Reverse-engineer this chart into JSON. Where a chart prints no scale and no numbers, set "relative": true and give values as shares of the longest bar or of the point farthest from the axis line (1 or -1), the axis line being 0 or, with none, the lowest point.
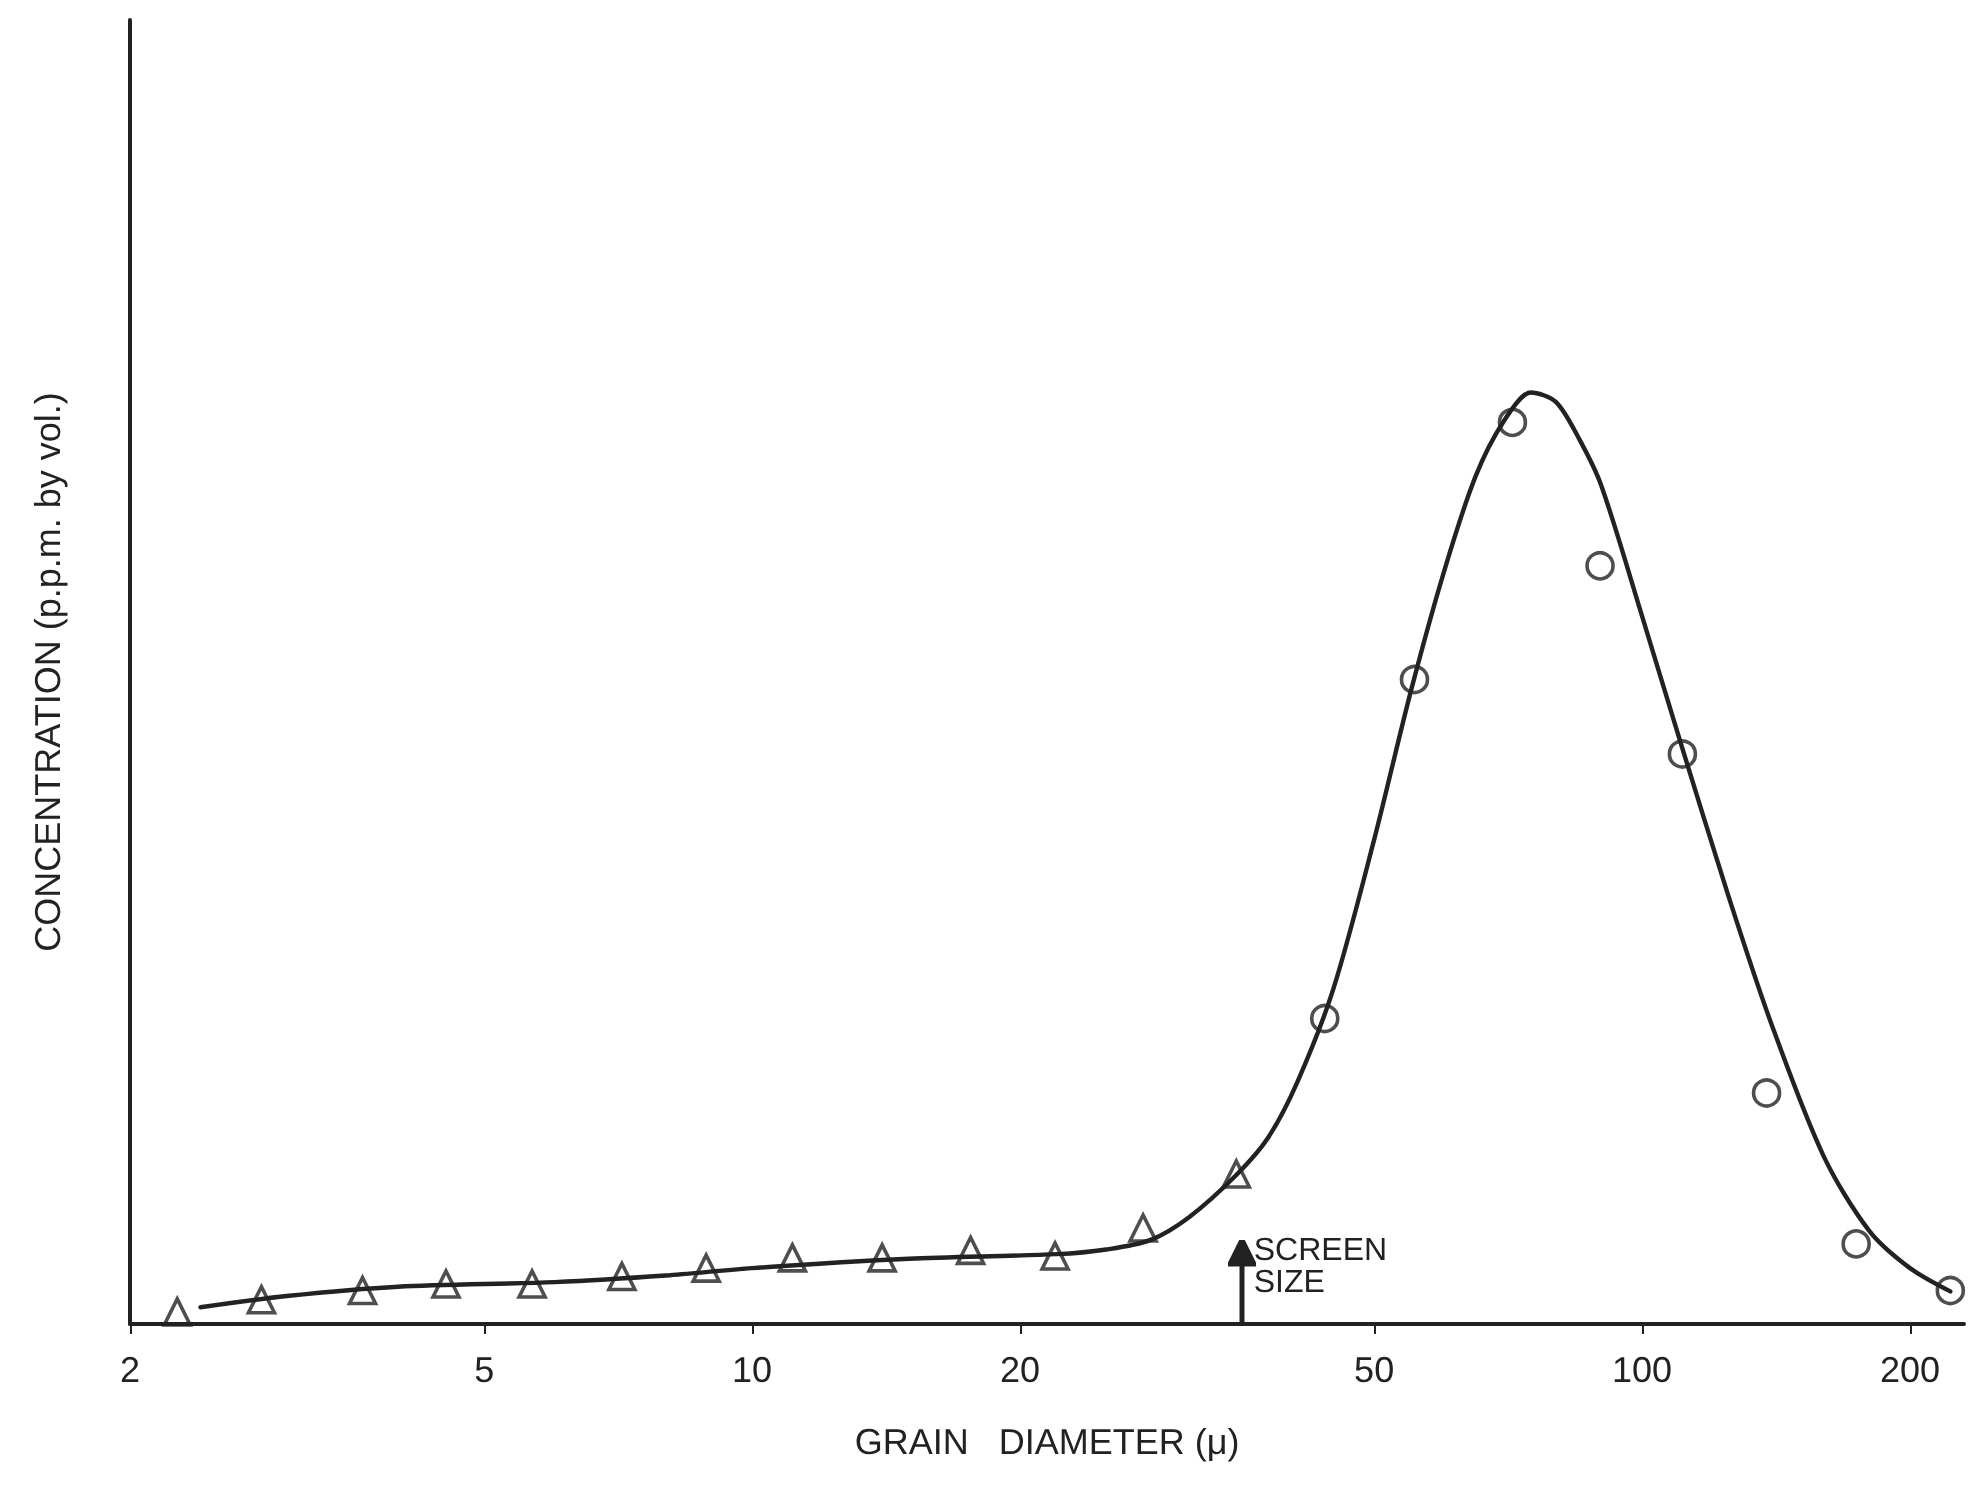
{
  "chart_data": {
    "type": "line",
    "relative": true,
    "xlabel": "GRAIN   DIAMETER (μ)",
    "ylabel": "CONCENTRATION (p.p.m. by vol.)",
    "log": "x",
    "xlim": [
      2,
      230
    ],
    "xticks": [
      2,
      5,
      10,
      20,
      50,
      100,
      200
    ],
    "grid": false,
    "series": [
      {
        "marker": "none",
        "line_style": "solid",
        "color": "#222222",
        "x": [
          2.4,
          3,
          4,
          6,
          8,
          10,
          15,
          22,
          25,
          28,
          31,
          35,
          38,
          41,
          45,
          50,
          55,
          60,
          65,
          70,
          75,
          80,
          85,
          90,
          100,
          110,
          125,
          140,
          160,
          180,
          200,
          222
        ],
        "values": [
          0.018,
          0.03,
          0.04,
          0.045,
          0.052,
          0.06,
          0.07,
          0.075,
          0.08,
          0.09,
          0.115,
          0.16,
          0.2,
          0.26,
          0.36,
          0.52,
          0.68,
          0.81,
          0.91,
          0.97,
          1.0,
          0.99,
          0.95,
          0.9,
          0.76,
          0.63,
          0.46,
          0.32,
          0.18,
          0.1,
          0.06,
          0.035
        ]
      },
      {
        "type": "scatter",
        "marker": "triangle",
        "color": "#222222",
        "x": [
          2.26,
          2.81,
          3.65,
          4.53,
          5.66,
          7.14,
          8.88,
          11.1,
          14.0,
          17.6,
          21.9,
          27.5,
          35.0
        ],
        "values": [
          0.013,
          0.026,
          0.036,
          0.043,
          0.043,
          0.051,
          0.06,
          0.071,
          0.071,
          0.079,
          0.073,
          0.103,
          0.161
        ]
      },
      {
        "type": "scatter",
        "marker": "circle",
        "color": "#222222",
        "x": [
          44.0,
          55.5,
          71.5,
          89.7,
          111,
          138,
          174,
          222
        ],
        "values": [
          0.328,
          0.692,
          0.968,
          0.814,
          0.612,
          0.248,
          0.086,
          0.036
        ]
      }
    ],
    "ref_lines": [
      {
        "axis": "x",
        "value": 35.5,
        "label": "SCREEN SIZE"
      }
    ]
  }
}
